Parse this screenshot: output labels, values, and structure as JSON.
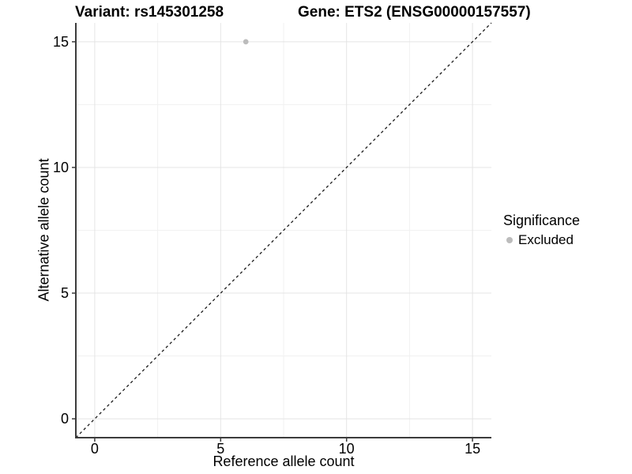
{
  "figure": {
    "title_left": "Variant: rs145301258",
    "title_right": "Gene: ETS2 (ENSG00000157557)"
  },
  "axes": {
    "x_title": "Reference allele count",
    "y_title": "Alternative allele count"
  },
  "legend": {
    "title": "Significance",
    "items": [
      {
        "label": "Excluded",
        "color": "#bcbcbc"
      }
    ]
  },
  "colors": {
    "background": "#ffffff",
    "text": "#000000",
    "axis": "#3c3c3c",
    "grid_major": "#e4e4e4",
    "grid_minor": "#f1f1f1",
    "reference_line": "#1a1a1a",
    "point": "#bcbcbc"
  },
  "chart_data": {
    "type": "scatter",
    "title": "Variant: rs145301258 | Gene: ETS2 (ENSG00000157557)",
    "xlabel": "Reference allele count",
    "ylabel": "Alternative allele count",
    "xlim": [
      -0.75,
      15.75
    ],
    "ylim": [
      -0.75,
      15.75
    ],
    "x_ticks": [
      0,
      5,
      10,
      15
    ],
    "y_ticks": [
      0,
      5,
      10,
      15
    ],
    "x_minor_ticks": [
      2.5,
      7.5,
      12.5
    ],
    "y_minor_ticks": [
      2.5,
      7.5,
      12.5
    ],
    "grid": "major and minor, light gray on white",
    "legend_position": "right",
    "series": [
      {
        "name": "Excluded",
        "color": "#bcbcbc",
        "points": [
          {
            "x": 6,
            "y": 15
          }
        ]
      }
    ],
    "reference_line": {
      "equation": "y = x",
      "style": "dashed",
      "from": [
        -0.75,
        -0.75
      ],
      "to": [
        15.75,
        15.75
      ]
    }
  }
}
